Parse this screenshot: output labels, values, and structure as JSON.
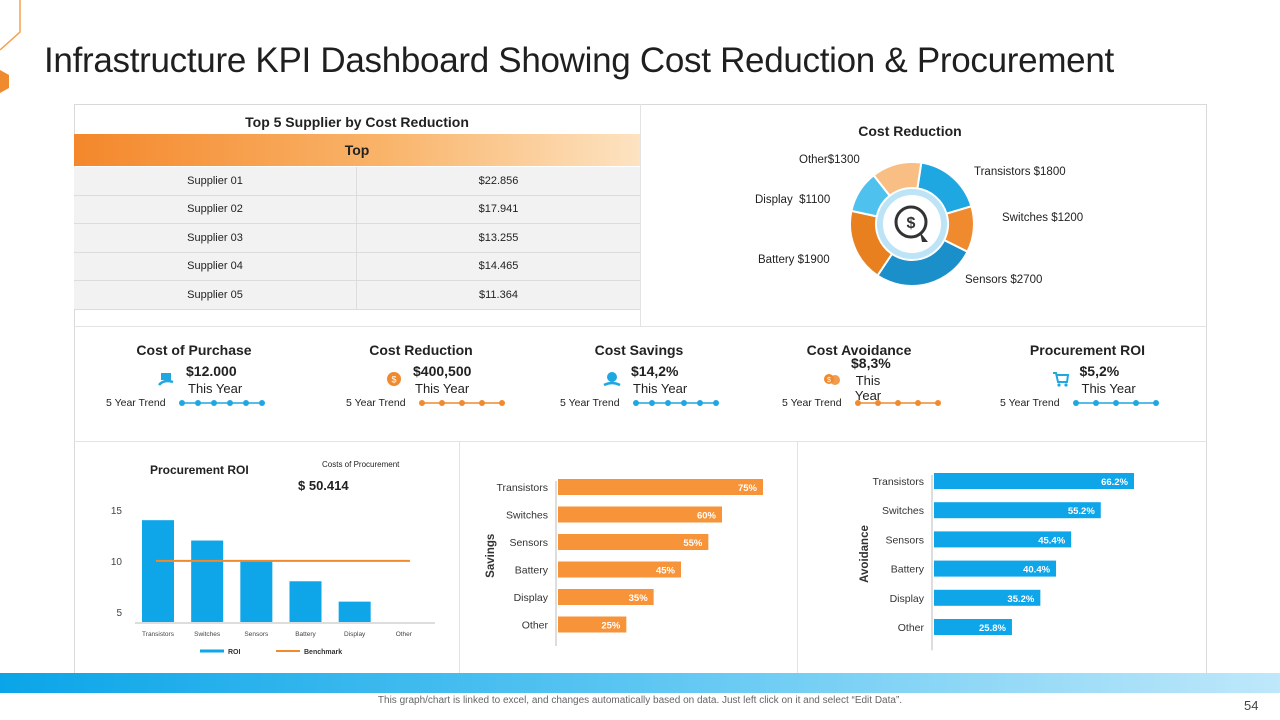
{
  "title": "Infrastructure KPI Dashboard Showing Cost Reduction & Procurement",
  "supplier_table": {
    "title": "Top 5 Supplier by Cost Reduction",
    "header": "Top",
    "rows": [
      {
        "name": "Supplier 01",
        "value": "$22.856"
      },
      {
        "name": "Supplier 02",
        "value": "$17.941"
      },
      {
        "name": "Supplier 03",
        "value": "$13.255"
      },
      {
        "name": "Supplier 04",
        "value": "$14.465"
      },
      {
        "name": "Supplier 05",
        "value": "$11.364"
      }
    ]
  },
  "kpis": [
    {
      "title": "Cost of Purchase",
      "value": "$12.000",
      "sub": "This Year",
      "trend_label": "5 Year Trend",
      "icon": "cash-hand-icon",
      "color": "#1ea7e1",
      "dots": 6
    },
    {
      "title": "Cost Reduction",
      "value": "$400,500",
      "sub": "This Year",
      "trend_label": "5 Year Trend",
      "icon": "coin-icon",
      "color": "#f08a2e",
      "dots": 5
    },
    {
      "title": "Cost Savings",
      "value": "$14,2%",
      "sub": "This Year",
      "trend_label": "5 Year Trend",
      "icon": "savings-icon",
      "color": "#1ea7e1",
      "dots": 6
    },
    {
      "title": "Cost Avoidance",
      "value": "$8,3%",
      "sub": "This Year",
      "trend_label": "5 Year Trend",
      "icon": "coins-icon",
      "color": "#f08a2e",
      "dots": 5
    },
    {
      "title": "Procurement ROI",
      "value": "$5,2%",
      "sub": "This Year",
      "trend_label": "5 Year Trend",
      "icon": "cart-icon",
      "color": "#1ea7e1",
      "dots": 5
    }
  ],
  "footer": "This graph/chart is linked to excel, and changes automatically based on data. Just left click on it and select “Edit Data”.",
  "page_number": "54",
  "chart_data": [
    {
      "type": "pie",
      "title": "Cost Reduction",
      "categories": [
        "Transistors",
        "Switches",
        "Sensors",
        "Battery",
        "Display",
        "Other"
      ],
      "values": [
        1800,
        1200,
        2700,
        1900,
        1100,
        1300
      ],
      "labels": [
        "Transistors $1800",
        "Switches $1200",
        "Sensors $2700",
        "Battery $1900",
        "Display  $1100",
        "Other$1300"
      ],
      "colors": [
        "#1ea7e1",
        "#f08a2e",
        "#1a8fc9",
        "#e8801f",
        "#4fc1ee",
        "#f9be83"
      ]
    },
    {
      "type": "bar",
      "title": "Procurement ROI",
      "categories": [
        "Transistors",
        "Switches",
        "Sensors",
        "Battery",
        "Display",
        "Other"
      ],
      "series": [
        {
          "name": "ROI",
          "values": [
            14,
            12,
            10,
            8,
            6,
            4
          ],
          "color": "#0ea5e9"
        },
        {
          "name": "Benchmark",
          "values": [
            10,
            10,
            10,
            10,
            10,
            10
          ],
          "color": "#f08a2e"
        }
      ],
      "yticks": [
        "15",
        "10",
        "5"
      ],
      "ylim": [
        4,
        15
      ],
      "annotation_label": "Costs of Procurement",
      "annotation_value": "$ 50.414"
    },
    {
      "type": "bar",
      "orientation": "horizontal",
      "ylabel": "Savings",
      "categories": [
        "Transistors",
        "Switches",
        "Sensors",
        "Battery",
        "Display",
        "Other"
      ],
      "values": [
        75,
        60,
        55,
        45,
        35,
        25
      ],
      "value_labels": [
        "75%",
        "60%",
        "55%",
        "45%",
        "35%",
        "25%"
      ],
      "color": "#f7943a"
    },
    {
      "type": "bar",
      "orientation": "horizontal",
      "ylabel": "Avoidance",
      "categories": [
        "Transistors",
        "Switches",
        "Sensors",
        "Battery",
        "Display",
        "Other"
      ],
      "values": [
        66.2,
        55.2,
        45.4,
        40.4,
        35.2,
        25.8
      ],
      "value_labels": [
        "66.2%",
        "55.2%",
        "45.4%",
        "40.4%",
        "35.2%",
        "25.8%"
      ],
      "color": "#0ea5e9"
    }
  ]
}
